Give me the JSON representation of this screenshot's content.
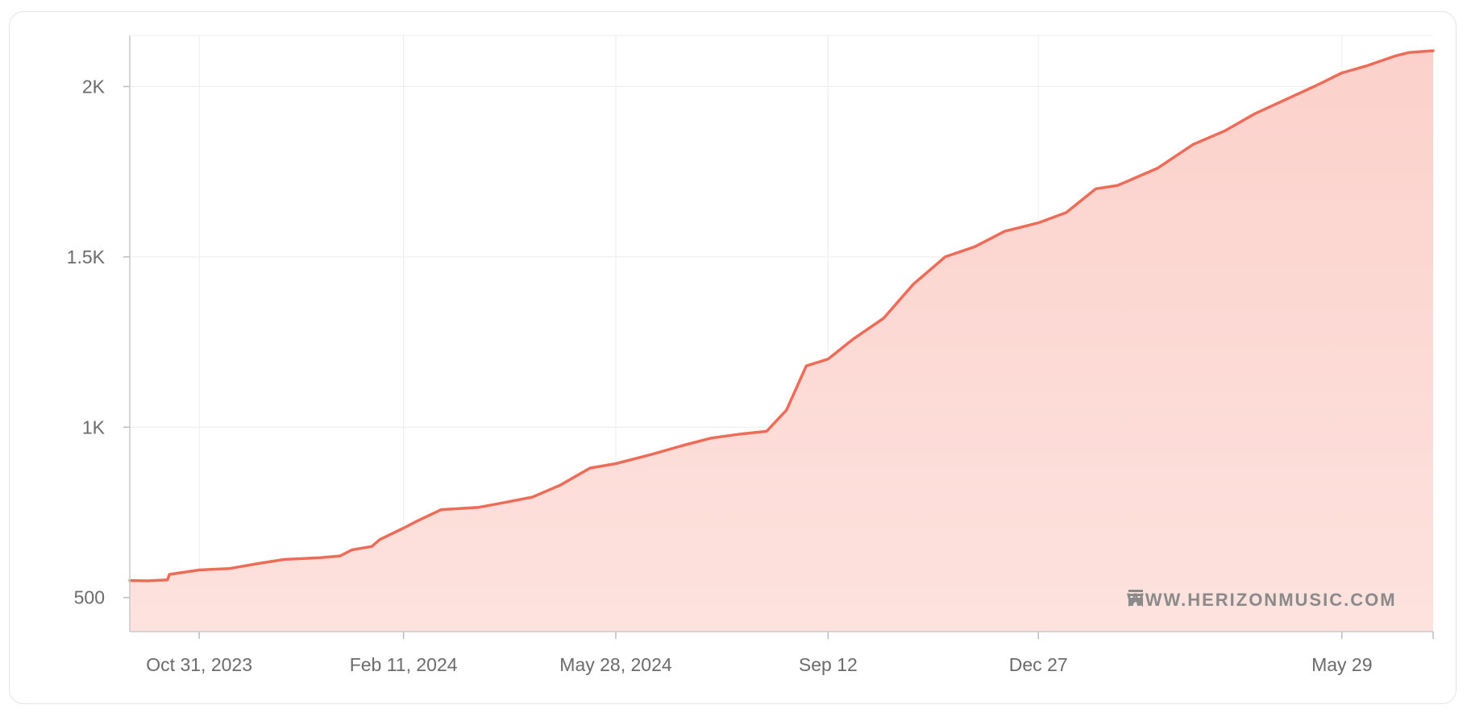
{
  "chart_data": {
    "type": "area",
    "title": "",
    "xlabel": "",
    "ylabel": "",
    "x_range": [
      "2023-09-26",
      "2025-07-14"
    ],
    "ylim": [
      400,
      2150
    ],
    "grid": true,
    "line_color": "#ef6b57",
    "fill_color": "#fcd4cf",
    "y_ticks": [
      {
        "value": 500,
        "label": "500"
      },
      {
        "value": 1000,
        "label": "1K"
      },
      {
        "value": 1500,
        "label": "1.5K"
      },
      {
        "value": 2000,
        "label": "2K"
      }
    ],
    "x_ticks": [
      {
        "date": "2023-10-31",
        "label": "Oct 31, 2023"
      },
      {
        "date": "2024-02-11",
        "label": "Feb 11, 2024"
      },
      {
        "date": "2024-05-28",
        "label": "May 28, 2024"
      },
      {
        "date": "2024-09-12",
        "label": "Sep 12"
      },
      {
        "date": "2024-12-27",
        "label": "Dec 27"
      },
      {
        "date": "2025-05-29",
        "label": "May 29"
      }
    ],
    "series": [
      {
        "points": [
          [
            "2023-09-26",
            550
          ],
          [
            "2023-10-05",
            549
          ],
          [
            "2023-10-15",
            552
          ],
          [
            "2023-10-16",
            568
          ],
          [
            "2023-10-31",
            581
          ],
          [
            "2023-11-15",
            585
          ],
          [
            "2023-11-30",
            600
          ],
          [
            "2023-12-13",
            612
          ],
          [
            "2023-12-31",
            617
          ],
          [
            "2024-01-10",
            622
          ],
          [
            "2024-01-16",
            640
          ],
          [
            "2024-01-26",
            650
          ],
          [
            "2024-01-30",
            670
          ],
          [
            "2024-02-11",
            704
          ],
          [
            "2024-02-18",
            725
          ],
          [
            "2024-03-01",
            758
          ],
          [
            "2024-03-20",
            765
          ],
          [
            "2024-04-01",
            778
          ],
          [
            "2024-04-16",
            795
          ],
          [
            "2024-04-30",
            830
          ],
          [
            "2024-05-15",
            880
          ],
          [
            "2024-05-28",
            893
          ],
          [
            "2024-06-15",
            920
          ],
          [
            "2024-06-30",
            945
          ],
          [
            "2024-07-15",
            968
          ],
          [
            "2024-07-30",
            980
          ],
          [
            "2024-08-12",
            988
          ],
          [
            "2024-08-22",
            1050
          ],
          [
            "2024-09-01",
            1180
          ],
          [
            "2024-09-12",
            1200
          ],
          [
            "2024-09-25",
            1260
          ],
          [
            "2024-10-10",
            1320
          ],
          [
            "2024-10-25",
            1420
          ],
          [
            "2024-11-10",
            1500
          ],
          [
            "2024-11-25",
            1530
          ],
          [
            "2024-12-10",
            1575
          ],
          [
            "2024-12-27",
            1600
          ],
          [
            "2025-01-10",
            1630
          ],
          [
            "2025-01-25",
            1700
          ],
          [
            "2025-02-05",
            1710
          ],
          [
            "2025-02-25",
            1760
          ],
          [
            "2025-03-15",
            1830
          ],
          [
            "2025-03-31",
            1870
          ],
          [
            "2025-04-15",
            1920
          ],
          [
            "2025-04-30",
            1960
          ],
          [
            "2025-05-15",
            2000
          ],
          [
            "2025-05-29",
            2040
          ],
          [
            "2025-06-10",
            2060
          ],
          [
            "2025-06-25",
            2090
          ],
          [
            "2025-07-02",
            2100
          ],
          [
            "2025-07-14",
            2105
          ]
        ]
      }
    ]
  },
  "watermark": {
    "text": "WWW.HERIZONMUSIC.COM",
    "icon": "bookmark-icon"
  }
}
